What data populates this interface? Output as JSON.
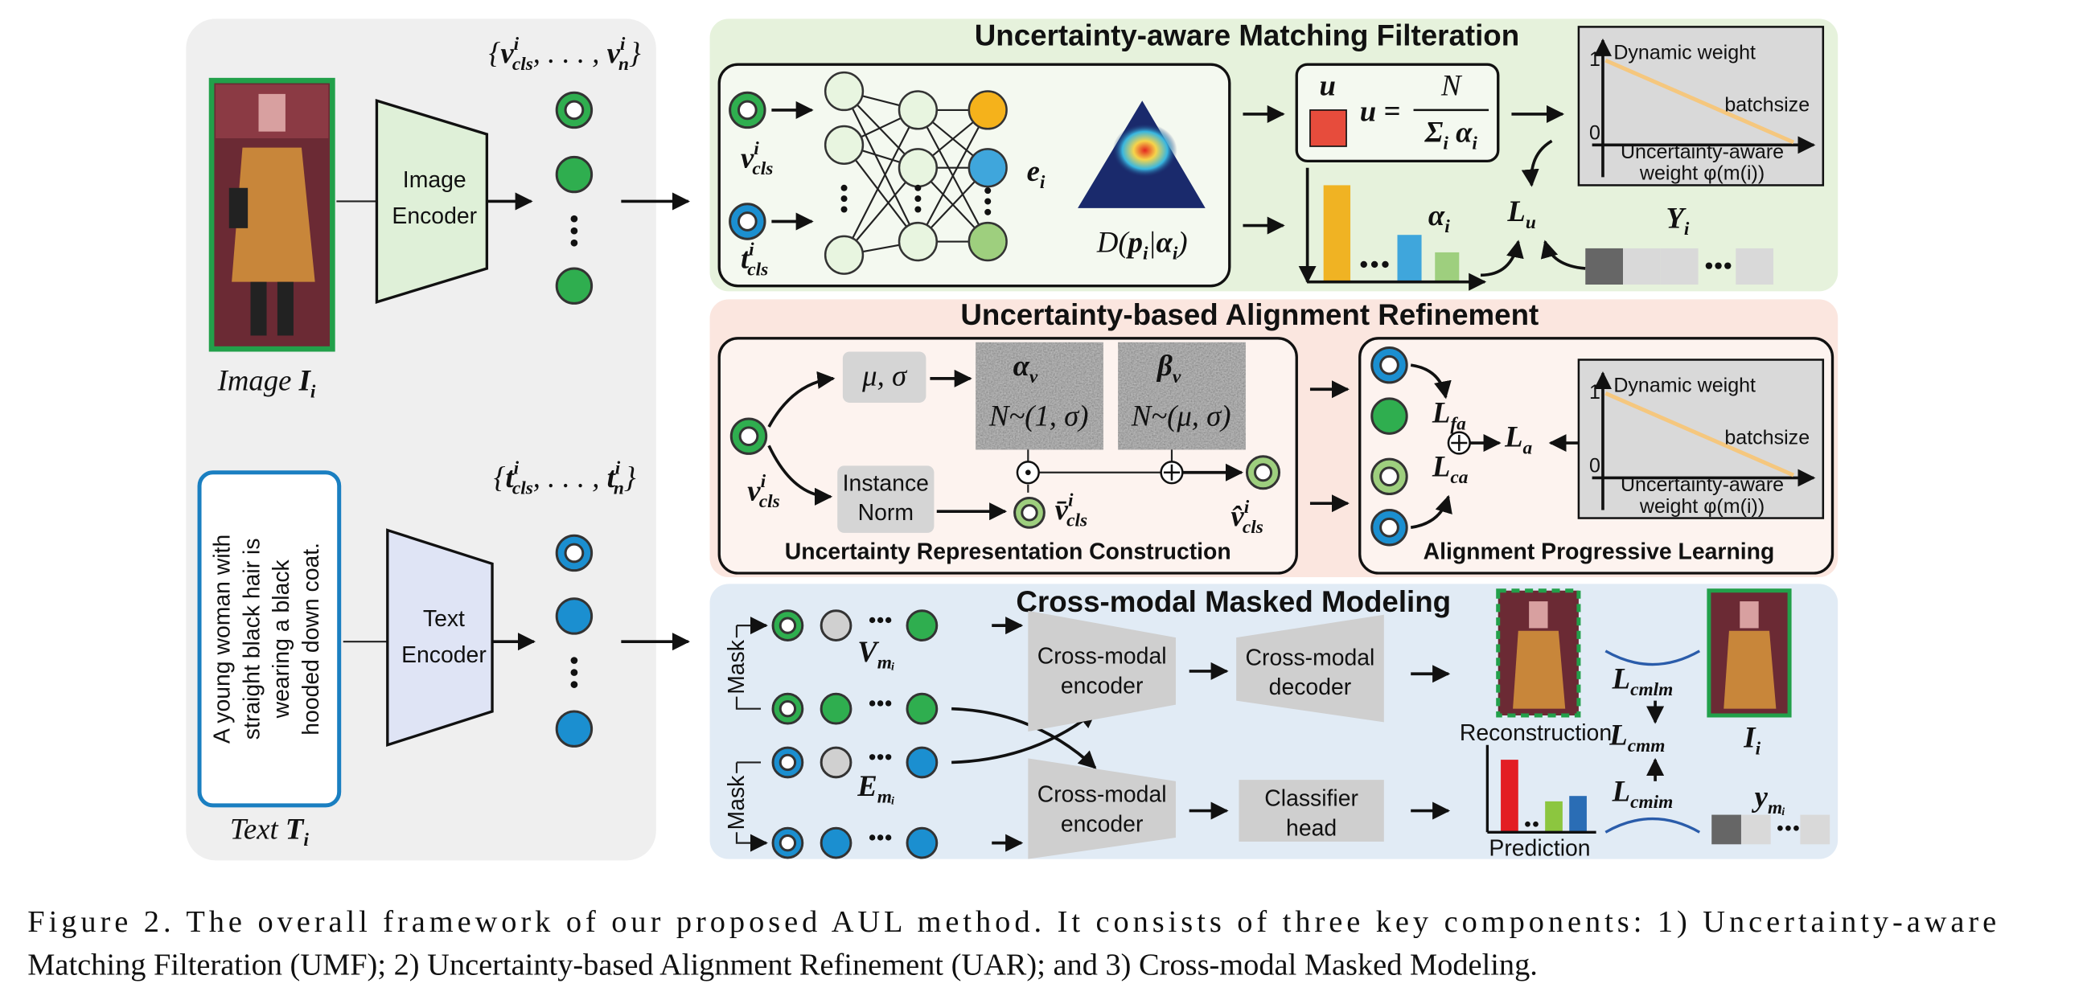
{
  "input": {
    "image_label": [
      {
        "t": "Image "
      },
      {
        "base": "I",
        "sub": "i"
      }
    ],
    "image_encoder": [
      "Image",
      "Encoder"
    ],
    "visual_tokens": [
      {
        "t": "{"
      },
      {
        "base": "v",
        "sup": "i",
        "sub": "cls"
      },
      {
        "t": ", . . . , "
      },
      {
        "base": "v",
        "sup": "i",
        "sub": "n"
      },
      {
        "t": "}"
      }
    ],
    "text_description": [
      "A young woman with",
      "straight black hair is",
      "wearing a black",
      "hooded down coat."
    ],
    "text_label": [
      {
        "t": "Text "
      },
      {
        "base": "T",
        "sub": "i"
      }
    ],
    "text_encoder": [
      "Text",
      "Encoder"
    ],
    "textual_tokens": [
      {
        "t": "{"
      },
      {
        "base": "t",
        "sup": "i",
        "sub": "cls"
      },
      {
        "t": ", . . . , "
      },
      {
        "base": "t",
        "sup": "i",
        "sub": "n"
      },
      {
        "t": "}"
      }
    ]
  },
  "umf": {
    "title": "Uncertainty-aware Matching Filteration",
    "visual_cls": [
      {
        "base": "v",
        "sup": "i",
        "sub": "cls"
      }
    ],
    "textual_cls": [
      {
        "base": "t",
        "sup": "i",
        "sub": "cls"
      }
    ],
    "evidence": [
      {
        "base": "e",
        "sub": "i"
      }
    ],
    "dirichlet": [
      {
        "t": "D("
      },
      {
        "base": "p",
        "sub": "i"
      },
      {
        "t": "|"
      },
      {
        "base": "α",
        "sub": "i"
      },
      {
        "t": ")"
      }
    ],
    "uncertainty": "u",
    "formula": {
      "lhs": "u =",
      "numerator": "N",
      "denominator": [
        {
          "base": "Σ",
          "sub": "i"
        },
        {
          "t": " "
        },
        {
          "base": "α",
          "sub": "i"
        }
      ]
    },
    "alpha": [
      {
        "base": "α",
        "sub": "i"
      }
    ],
    "loss": [
      {
        "base": "L",
        "sub": "u"
      }
    ],
    "labels": [
      {
        "base": "Y",
        "sub": "i"
      }
    ],
    "weight_chart": {
      "y_high": 1,
      "y_low": 0,
      "curve": "Dynamic weight",
      "x_label": "batchsize",
      "caption": [
        "Uncertainty-aware",
        "weight φ(m(i))"
      ]
    }
  },
  "uar": {
    "title": "Uncertainty-based Alignment Refinement",
    "stats": "μ, σ",
    "instance_norm": [
      "Instance",
      "Norm"
    ],
    "alpha": [
      {
        "base": "α",
        "sub": "v"
      }
    ],
    "alpha_dist": "N~(1, σ)",
    "beta": [
      {
        "base": "β",
        "sub": "v"
      }
    ],
    "beta_dist": "N~(μ, σ)",
    "input": [
      {
        "base": "v",
        "sup": "i",
        "sub": "cls"
      }
    ],
    "normalized": [
      {
        "base": "v̄",
        "sup": "i",
        "sub": "cls"
      }
    ],
    "output": [
      {
        "base": "v̂",
        "sup": "i",
        "sub": "cls"
      }
    ],
    "construction_label": "Uncertainty Representation Construction",
    "loss_fa": [
      {
        "base": "L",
        "sub": "fa"
      }
    ],
    "loss_ca": [
      {
        "base": "L",
        "sub": "ca"
      }
    ],
    "loss_a": [
      {
        "base": "L",
        "sub": "a"
      }
    ],
    "weight_chart": {
      "y_high": 1,
      "y_low": 0,
      "curve": "Dynamic weight",
      "x_label": "batchsize",
      "caption": [
        "Uncertainty-aware",
        "weight φ(m(i))"
      ]
    },
    "learning_label": "Alignment Progressive Learning"
  },
  "cmm": {
    "title": "Cross-modal Masked Modeling",
    "mask": [
      "Mask",
      "Mask"
    ],
    "visual_masked": [
      {
        "base": "V",
        "sub": "mᵢ"
      }
    ],
    "text_masked": [
      {
        "base": "E",
        "sub": "mᵢ"
      }
    ],
    "encoder_top": [
      "Cross-modal",
      "encoder"
    ],
    "encoder_bottom": [
      "Cross-modal",
      "encoder"
    ],
    "decoder": [
      "Cross-modal",
      "decoder"
    ],
    "classifier": [
      "Classifier",
      "head"
    ],
    "reconstruction": "Reconstruction",
    "prediction": "Prediction",
    "loss_cmlm": [
      {
        "base": "L",
        "sub": "cmlm"
      }
    ],
    "loss_cmm": [
      {
        "base": "L",
        "sub": "cmm"
      }
    ],
    "loss_cmim": [
      {
        "base": "L",
        "sub": "cmim"
      }
    ],
    "target_image": [
      {
        "base": "I",
        "sub": "i"
      }
    ],
    "target_labels": [
      {
        "base": "y",
        "sub": "mᵢ"
      }
    ]
  },
  "caption": [
    "Figure 2. The overall framework of our proposed AUL method. It consists of three key components: 1) Uncertainty-aware",
    "Matching Filteration (UMF); 2) Uncertainty-based Alignment Refinement (UAR); and 3) Cross-modal Masked Modeling."
  ]
}
